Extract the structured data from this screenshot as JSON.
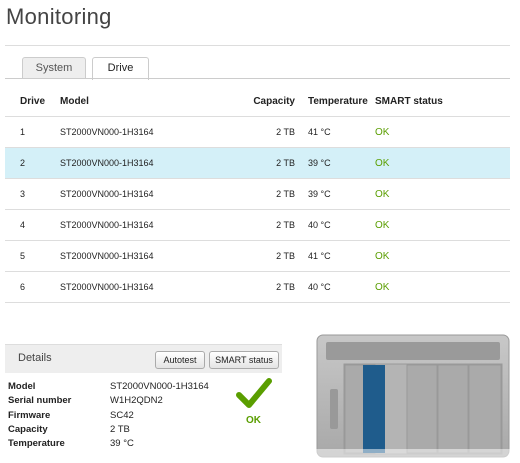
{
  "header": {
    "title": "Monitoring"
  },
  "tabs": [
    "System",
    "Drive"
  ],
  "table": {
    "columns": [
      "Drive",
      "Model",
      "Capacity",
      "Temperature",
      "SMART status"
    ],
    "rows": [
      [
        "1",
        "ST2000VN000-1H3164",
        "2 TB",
        "41 °C",
        "OK"
      ],
      [
        "2",
        "ST2000VN000-1H3164",
        "2 TB",
        "39 °C",
        "OK"
      ],
      [
        "3",
        "ST2000VN000-1H3164",
        "2 TB",
        "39 °C",
        "OK"
      ],
      [
        "4",
        "ST2000VN000-1H3164",
        "2 TB",
        "40 °C",
        "OK"
      ],
      [
        "5",
        "ST2000VN000-1H3164",
        "2 TB",
        "41 °C",
        "OK"
      ],
      [
        "6",
        "ST2000VN000-1H3164",
        "2 TB",
        "40 °C",
        "OK"
      ]
    ]
  },
  "details": {
    "title": "Details",
    "buttons": [
      "Autotest",
      "SMART status"
    ],
    "fields": [
      [
        "Model",
        "ST2000VN000-1H3164"
      ],
      [
        "Serial number",
        "W1H2QDN2"
      ],
      [
        "Firmware",
        "SC42"
      ],
      [
        "Capacity",
        "2 TB"
      ],
      [
        "Temperature",
        "39 °C"
      ]
    ],
    "status": "OK"
  }
}
